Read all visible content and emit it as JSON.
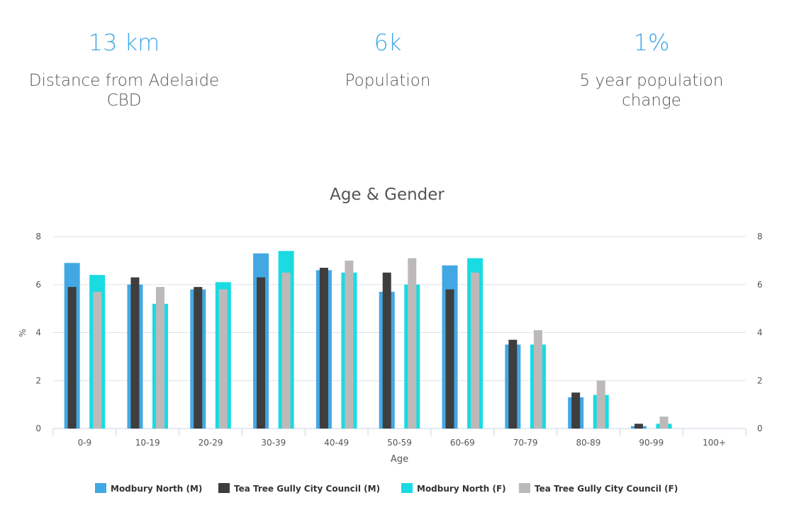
{
  "stats": [
    {
      "value": "13 km",
      "label": "Distance from Adelaide CBD"
    },
    {
      "value": "6k",
      "label": "Population"
    },
    {
      "value": "1%",
      "label": "5 year population change"
    }
  ],
  "colors": {
    "accent": "#3ea7e3",
    "modbury_m": "#42a8e3",
    "council_m": "#3e3e3e",
    "modbury_f": "#1adbe2",
    "council_f": "#bdb9b9"
  },
  "chart_data": {
    "type": "bar",
    "title": "Age & Gender",
    "xlabel": "Age",
    "ylabel": "%",
    "ylim": [
      0,
      8
    ],
    "yticks": [
      0,
      2,
      4,
      6,
      8
    ],
    "categories": [
      "0-9",
      "10-19",
      "20-29",
      "30-39",
      "40-49",
      "50-59",
      "60-69",
      "70-79",
      "80-89",
      "90-99",
      "100+"
    ],
    "series": [
      {
        "name": "Modbury North (M)",
        "values": [
          6.9,
          6.0,
          5.8,
          7.3,
          6.6,
          5.7,
          6.8,
          3.5,
          1.3,
          0.1,
          0
        ]
      },
      {
        "name": "Tea Tree Gully City Council (M)",
        "values": [
          5.9,
          6.3,
          5.9,
          6.3,
          6.7,
          6.5,
          5.8,
          3.7,
          1.5,
          0.2,
          0
        ]
      },
      {
        "name": "Modbury North (F)",
        "values": [
          6.4,
          5.2,
          6.1,
          7.4,
          6.5,
          6.0,
          7.1,
          3.5,
          1.4,
          0.2,
          0
        ]
      },
      {
        "name": "Tea Tree Gully City Council (F)",
        "values": [
          5.7,
          5.9,
          5.8,
          6.5,
          7.0,
          7.1,
          6.5,
          4.1,
          2.0,
          0.5,
          0
        ]
      }
    ],
    "legend_position": "bottom"
  }
}
